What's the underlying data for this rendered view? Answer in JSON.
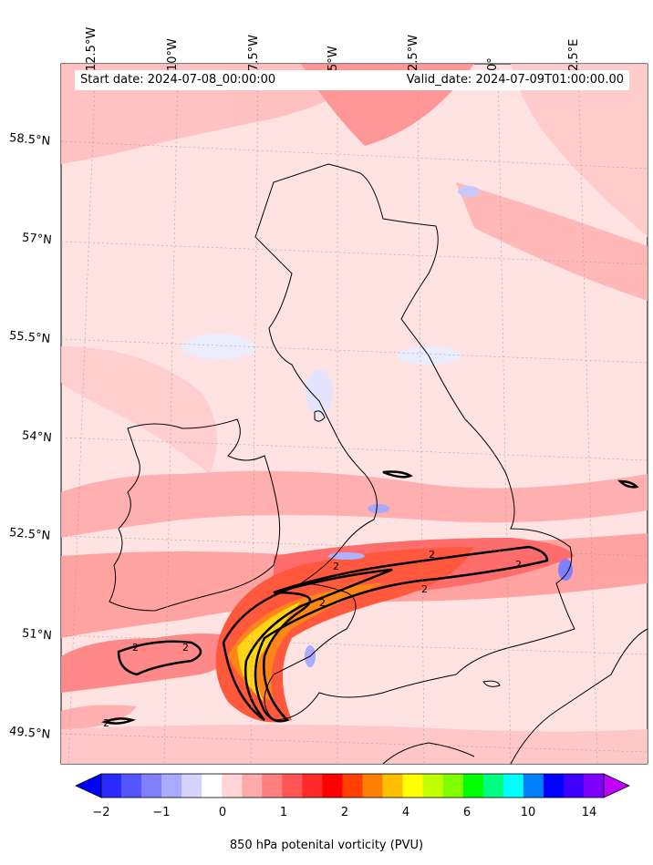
{
  "header": {
    "start_date": "Start date: 2024-07-08_00:00:00",
    "valid_date": "Valid_date: 2024-07-09T01:00:00.00"
  },
  "map": {
    "longitude_labels": [
      "12.5°W",
      "10°W",
      "7.5°W",
      "5°W",
      "2.5°W",
      "0°",
      "2.5°E"
    ],
    "latitude_labels": [
      "58.5°N",
      "57°N",
      "55.5°N",
      "54°N",
      "52.5°N",
      "51°N",
      "49.5°N"
    ],
    "contour_label": "2",
    "background_color": "#ffe0e0",
    "coastline_color": "#000000"
  },
  "colorbar": {
    "label": "850 hPa potenital vorticity (PVU)",
    "ticks": [
      "−2",
      "−1",
      "0",
      "1",
      "2",
      "4",
      "6",
      "10",
      "14"
    ],
    "colors": [
      "#0000ff",
      "#2a2aff",
      "#5555ff",
      "#7f7fff",
      "#aaaaff",
      "#d4d4ff",
      "#ffffff",
      "#ffd4d4",
      "#ffaaaa",
      "#ff7f7f",
      "#ff5555",
      "#ff2a2a",
      "#ff0000",
      "#ff4000",
      "#ff8000",
      "#ffbf00",
      "#ffff00",
      "#bfff00",
      "#80ff00",
      "#00ff00",
      "#00ff80",
      "#00ffff",
      "#0080ff",
      "#0000ff",
      "#4000ff",
      "#8000ff",
      "#bf00ff"
    ]
  }
}
